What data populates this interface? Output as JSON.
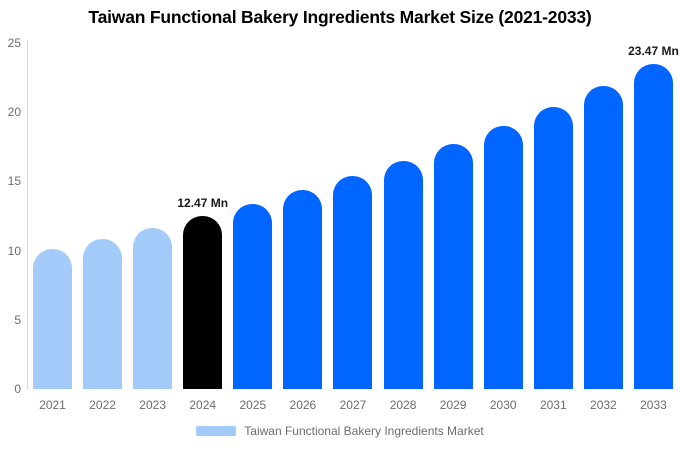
{
  "title": "Taiwan Functional Bakery Ingredients Market Size (2021-2033)",
  "legend": {
    "label": "Taiwan Functional Bakery Ingredients Market",
    "swatch_color": "#a3cbfa"
  },
  "colors": {
    "historical_bar": "#a3cbfa",
    "base_year_bar": "#000000",
    "forecast_bar": "#0066ff",
    "axis_line": "#d8d8d8",
    "tick_text": "#6d6d6d",
    "annotation_text": "#1a1a1a"
  },
  "chart_data": {
    "type": "bar",
    "title": "Taiwan Functional Bakery Ingredients Market Size (2021-2033)",
    "categories": [
      "2021",
      "2022",
      "2023",
      "2024",
      "2025",
      "2026",
      "2027",
      "2028",
      "2029",
      "2030",
      "2031",
      "2032",
      "2033"
    ],
    "values": [
      10.09,
      10.82,
      11.61,
      12.47,
      13.38,
      14.35,
      15.39,
      16.51,
      17.71,
      19.0,
      20.38,
      21.86,
      23.47
    ],
    "unit": "Mn",
    "xlabel": "",
    "ylabel": "",
    "ylim": [
      0,
      25
    ],
    "yticks": [
      0,
      5,
      10,
      15,
      20,
      25
    ],
    "grid": false,
    "legend_position": "bottom",
    "bar_colors": [
      "#a3cbfa",
      "#a3cbfa",
      "#a3cbfa",
      "#000000",
      "#0066ff",
      "#0066ff",
      "#0066ff",
      "#0066ff",
      "#0066ff",
      "#0066ff",
      "#0066ff",
      "#0066ff",
      "#0066ff"
    ],
    "annotations": [
      {
        "category": "2024",
        "text": "12.47 Mn"
      },
      {
        "category": "2033",
        "text": "23.47 Mn"
      }
    ]
  }
}
